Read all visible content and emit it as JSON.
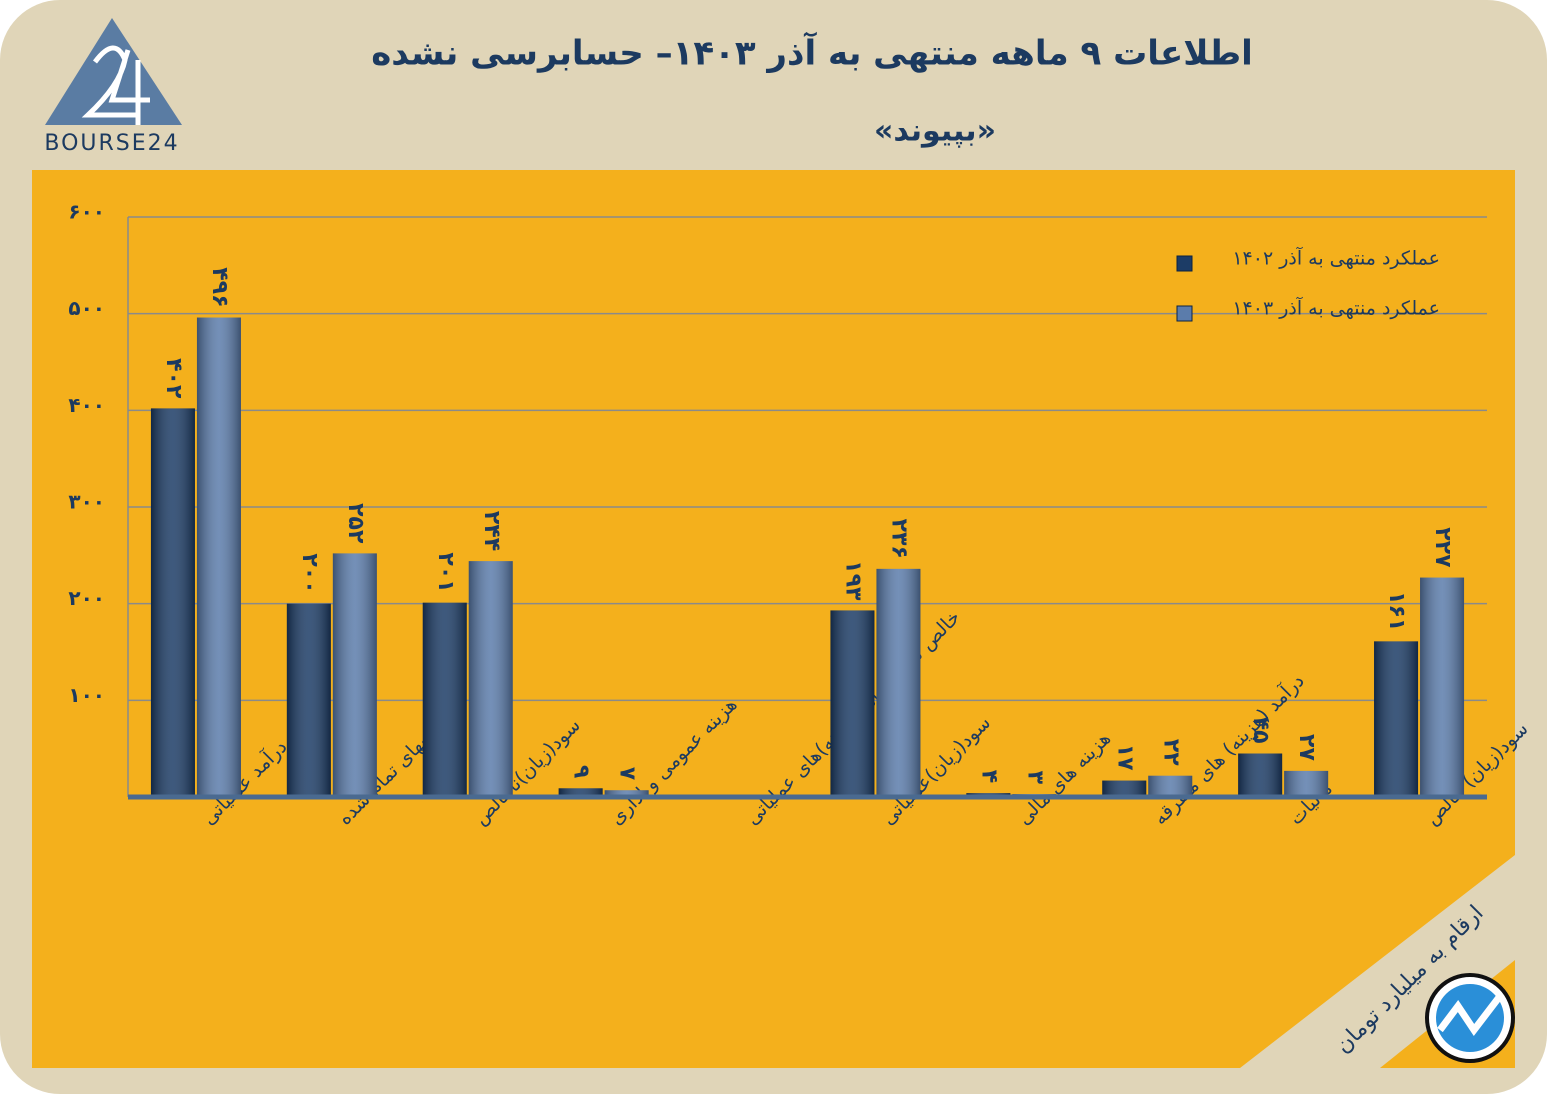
{
  "chart_data": {
    "type": "bar",
    "logo_text": "BOURSE24",
    "title": "اطلاعات ۹ ماهه منتهی به آذر ۱۴۰۳– حسابرسی نشده",
    "subtitle": "«بپیوند»",
    "note": "ارقام به میلیارد تومان",
    "categories": [
      "درآمد عملیاتی",
      "بهای تمام شده",
      "سود(زیان)ناخالص",
      "هزینه عمومی و اداری",
      "خالص سایر درامد(هزینه)های عملیاتی",
      "سود(زیان)عملیاتی",
      "هزینه های مالی",
      "درآمد (هزینه) های متفرقه",
      "مالیات",
      "سود(زیان) خالص"
    ],
    "series": [
      {
        "name": "عملکرد منتهی به آذر ۱۴۰۲",
        "color": "#1c3c66",
        "values": [
          402,
          200,
          201,
          9,
          null,
          193,
          4,
          17,
          45,
          161
        ],
        "value_labels": [
          "۴۰۲",
          "۲۰۰",
          "۲۰۱",
          "۹",
          null,
          "۱۹۳",
          "۴",
          "۱۷",
          "۴۵",
          "۱۶۱"
        ]
      },
      {
        "name": "عملکرد منتهی به آذر ۱۴۰۳",
        "color": "#5b7cab",
        "values": [
          496,
          252,
          244,
          7,
          null,
          236,
          3,
          22,
          27,
          227
        ],
        "value_labels": [
          "۴۹۶",
          "۲۵۲",
          "۲۴۴",
          "۷",
          null,
          "۲۳۶",
          "۳",
          "۲۲",
          "۲۷",
          "۲۲۷"
        ]
      }
    ],
    "ylim": [
      0,
      600
    ],
    "yticks": [
      {
        "value": 100,
        "label": "۱۰۰"
      },
      {
        "value": 200,
        "label": "۲۰۰"
      },
      {
        "value": 300,
        "label": "۳۰۰"
      },
      {
        "value": 400,
        "label": "۴۰۰"
      },
      {
        "value": 500,
        "label": "۵۰۰"
      },
      {
        "value": 600,
        "label": "۶۰۰"
      }
    ],
    "grid": true,
    "legend": "top-right"
  }
}
